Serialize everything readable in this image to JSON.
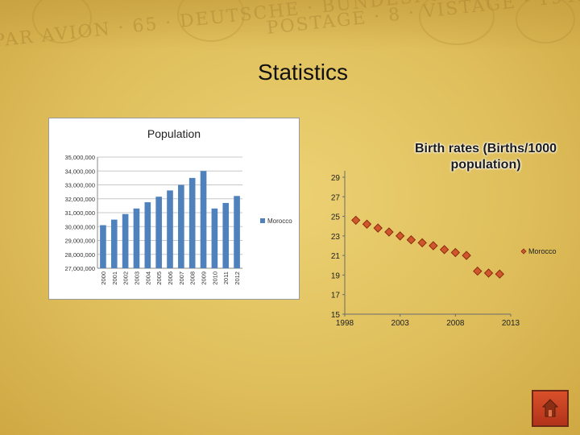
{
  "slide": {
    "title": "Statistics",
    "decor_stamp_text": "PAR AVION · DEUTSCHE BUNDESPOST · VISTAGE · POSTAGE"
  },
  "colors": {
    "bar_color": "#4f81bd",
    "marker_fill": "#d0572c",
    "marker_stroke": "#8b2d0f",
    "background": "#e2c463"
  },
  "chart_data": [
    {
      "type": "bar",
      "title": "Population",
      "categories": [
        "2000",
        "2001",
        "2002",
        "2003",
        "2004",
        "2005",
        "2006",
        "2007",
        "2008",
        "2009",
        "2010",
        "2011",
        "2012"
      ],
      "series": [
        {
          "name": "Morocco",
          "values": [
            30100000,
            30500000,
            30900000,
            31300000,
            31750000,
            32150000,
            32600000,
            33000000,
            33500000,
            34000000,
            31300000,
            31700000,
            32200000
          ]
        }
      ],
      "ylim": [
        27000000,
        35000000
      ],
      "yticks": [
        "27,000,000",
        "28,000,000",
        "29,000,000",
        "30,000,000",
        "31,000,000",
        "32,000,000",
        "33,000,000",
        "34,000,000",
        "35,000,000"
      ],
      "grid": true,
      "legend": "right"
    },
    {
      "type": "scatter",
      "title": "Birth rates (Births/1000 population)",
      "x": [
        1999,
        2000,
        2001,
        2002,
        2003,
        2004,
        2005,
        2006,
        2007,
        2008,
        2009,
        2010,
        2011,
        2012
      ],
      "y": [
        24.6,
        24.2,
        23.8,
        23.4,
        23.0,
        22.6,
        22.3,
        22.0,
        21.6,
        21.3,
        21.0,
        19.4,
        19.2,
        19.1
      ],
      "series": [
        {
          "name": "Morocco"
        }
      ],
      "xticks": [
        "1998",
        "2003",
        "2008",
        "2013"
      ],
      "yticks": [
        "15",
        "17",
        "19",
        "21",
        "23",
        "25",
        "27",
        "29"
      ],
      "xlim": [
        1998,
        2013
      ],
      "ylim": [
        15,
        29
      ],
      "grid": false,
      "legend": "right"
    }
  ]
}
